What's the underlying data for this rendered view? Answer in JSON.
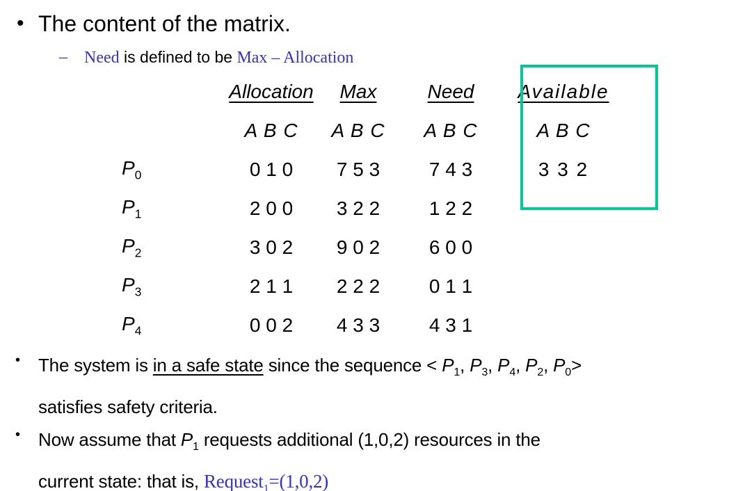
{
  "glyphs": {
    "bullet": "•",
    "dash": "–"
  },
  "colors": {
    "text": "#000000",
    "accent_blue": "#3333cc",
    "highlight_green": "#00c896",
    "background": "#ffffff"
  },
  "title": {
    "text": "The content of the matrix."
  },
  "definition": {
    "term": "Need",
    "middle": " is defined to be ",
    "formula": "Max – Allocation"
  },
  "table": {
    "p_label": "P",
    "headers": {
      "allocation": "Allocation",
      "max": "Max",
      "need": "Need",
      "available": "Available"
    },
    "abc": "A B C",
    "rows": [
      {
        "sub": "0",
        "allocation": "0 1 0",
        "max": "7 5 3",
        "need": "7 4 3",
        "available": "3 3 2"
      },
      {
        "sub": "1",
        "allocation": "2 0 0",
        "max": "3 2 2",
        "need": "1 2 2",
        "available": ""
      },
      {
        "sub": "2",
        "allocation": "3 0 2",
        "max": "9 0 2",
        "need": "6 0 0",
        "available": ""
      },
      {
        "sub": "3",
        "allocation": "2 1 1",
        "max": "2 2 2",
        "need": "0 1 1",
        "available": ""
      },
      {
        "sub": "4",
        "allocation": "0 0 2",
        "max": "4 3 3",
        "need": "4 3 1",
        "available": ""
      }
    ]
  },
  "safe_state": {
    "prefix": "The system is ",
    "underlined": "in a safe state",
    "middle": " since the sequence < ",
    "p_label": "P",
    "sequence": [
      "1",
      "3",
      "4",
      "2",
      "0"
    ],
    "comma": ", ",
    "close": ">",
    "line2": "satisfies safety criteria."
  },
  "request": {
    "prefix": "Now assume that ",
    "p_label": "P",
    "p_sub": "1",
    "line1_rest": " requests additional (1,0,2) resources in the",
    "line2_prefix": "current state: that is, ",
    "request_word": "Request",
    "request_sub": "1",
    "request_rest": "=(1,0,2)"
  }
}
